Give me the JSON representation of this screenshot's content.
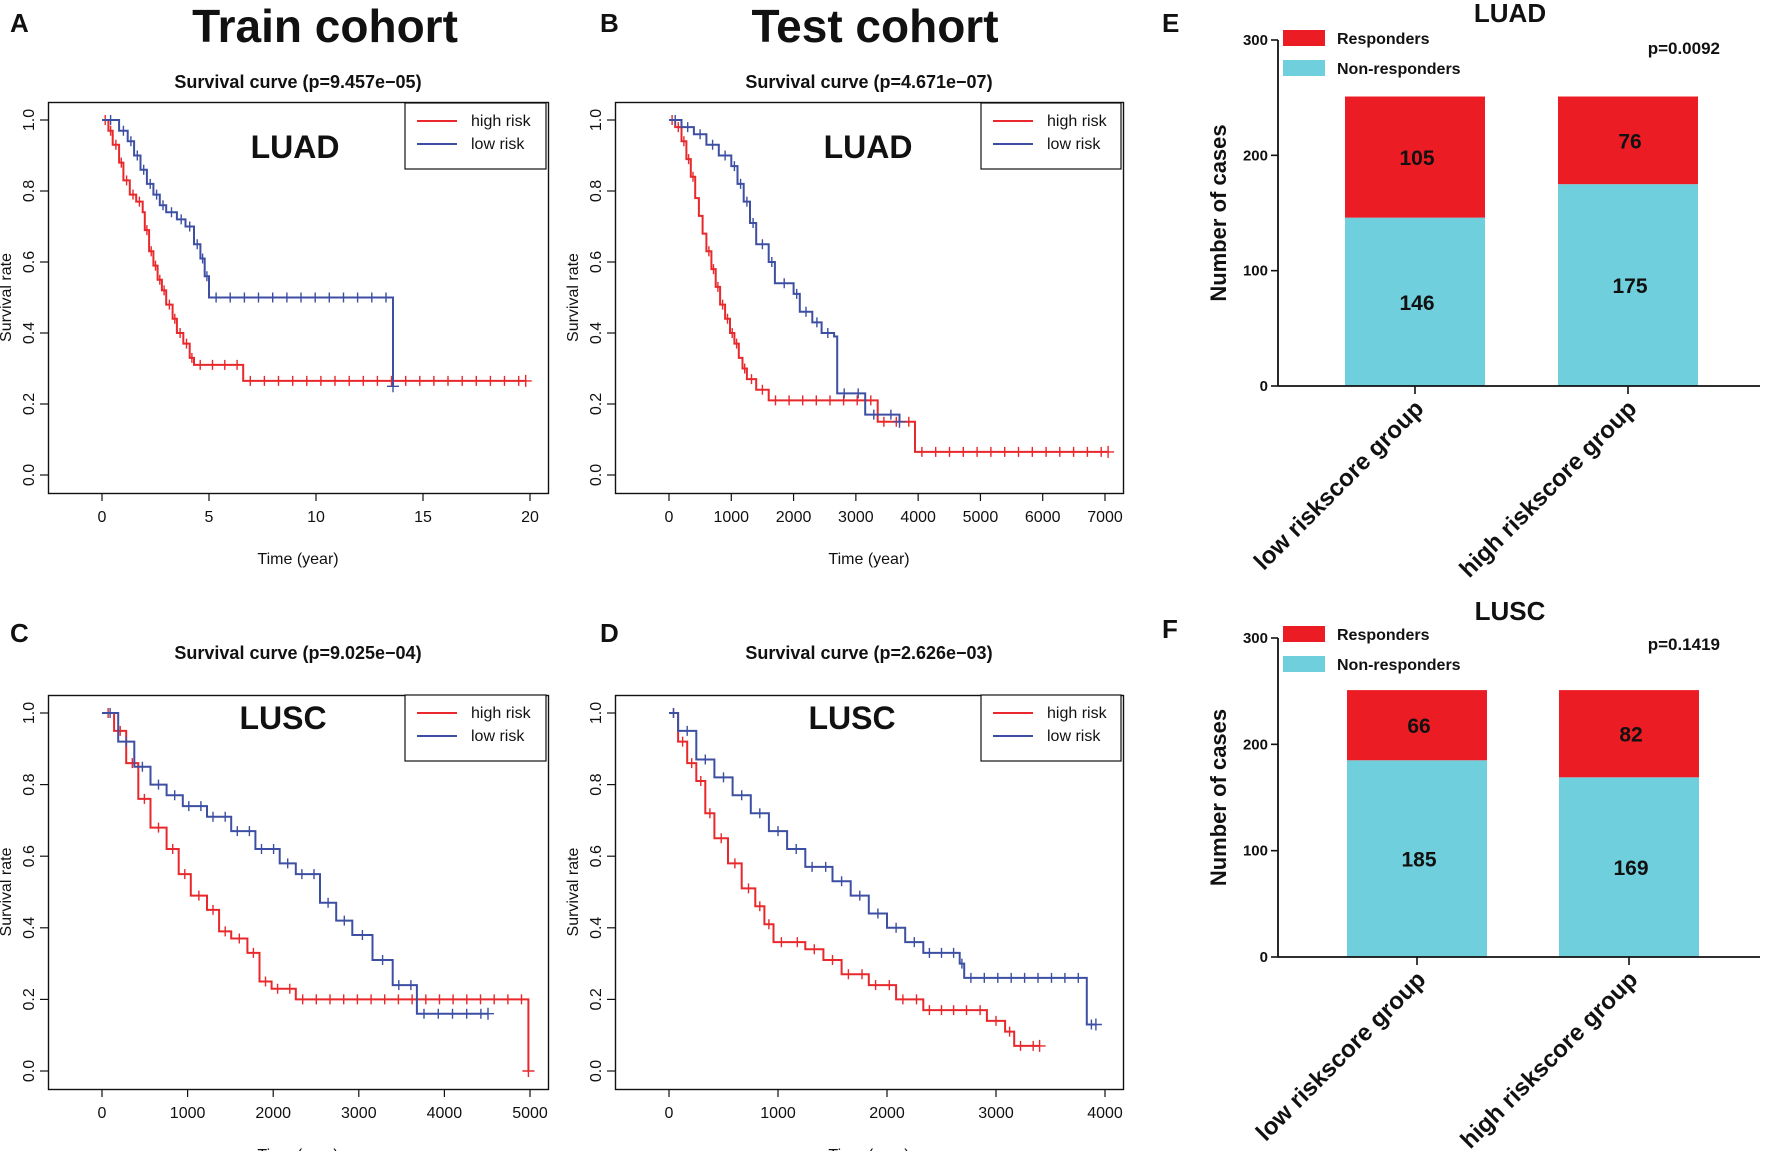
{
  "panel_labels": [
    "A",
    "B",
    "C",
    "D",
    "E",
    "F"
  ],
  "cohorts": {
    "train": "Train cohort",
    "test": "Test cohort"
  },
  "colors": {
    "high_risk": "#e8282b",
    "low_risk": "#3d4fa3",
    "responders": "#ec1c24",
    "non_responders": "#6fcfdc"
  },
  "chart_data": [
    {
      "id": "A",
      "type": "line",
      "title": "Survival curve (p=9.457e−05)",
      "label": "LUAD",
      "xlabel": "Time (year)",
      "ylabel": "Survival rate",
      "xlim": [
        0,
        20
      ],
      "ylim": [
        0,
        1
      ],
      "xticks": [
        "0",
        "5",
        "10",
        "15",
        "20"
      ],
      "yticks": [
        "0.0",
        "0.2",
        "0.4",
        "0.6",
        "0.8",
        "1.0"
      ],
      "legend": [
        "high risk",
        "low risk"
      ],
      "series": [
        {
          "name": "high risk",
          "points": [
            [
              0,
              1.0
            ],
            [
              0.3,
              0.97
            ],
            [
              0.5,
              0.93
            ],
            [
              0.8,
              0.88
            ],
            [
              1.0,
              0.83
            ],
            [
              1.3,
              0.79
            ],
            [
              1.6,
              0.77
            ],
            [
              1.9,
              0.74
            ],
            [
              2.0,
              0.69
            ],
            [
              2.2,
              0.63
            ],
            [
              2.4,
              0.59
            ],
            [
              2.6,
              0.55
            ],
            [
              2.8,
              0.52
            ],
            [
              3.0,
              0.48
            ],
            [
              3.3,
              0.44
            ],
            [
              3.5,
              0.4
            ],
            [
              3.8,
              0.37
            ],
            [
              4.1,
              0.33
            ],
            [
              4.3,
              0.31
            ],
            [
              6.6,
              0.265
            ],
            [
              19.8,
              0.265
            ]
          ]
        },
        {
          "name": "low risk",
          "points": [
            [
              0,
              1.0
            ],
            [
              0.8,
              0.97
            ],
            [
              1.2,
              0.94
            ],
            [
              1.5,
              0.9
            ],
            [
              1.8,
              0.86
            ],
            [
              2.1,
              0.82
            ],
            [
              2.4,
              0.79
            ],
            [
              2.7,
              0.76
            ],
            [
              3.0,
              0.74
            ],
            [
              3.5,
              0.72
            ],
            [
              3.9,
              0.7
            ],
            [
              4.3,
              0.65
            ],
            [
              4.6,
              0.61
            ],
            [
              4.8,
              0.56
            ],
            [
              5.0,
              0.5
            ],
            [
              13.6,
              0.5
            ],
            [
              13.6,
              0.25
            ]
          ]
        }
      ]
    },
    {
      "id": "B",
      "type": "line",
      "title": "Survival curve (p=4.671e−07)",
      "label": "LUAD",
      "xlabel": "Time (year)",
      "ylabel": "Survival rate",
      "xlim": [
        0,
        7000
      ],
      "ylim": [
        0,
        1
      ],
      "xticks": [
        "0",
        "1000",
        "2000",
        "3000",
        "4000",
        "5000",
        "6000",
        "7000"
      ],
      "yticks": [
        "0.0",
        "0.2",
        "0.4",
        "0.6",
        "0.8",
        "1.0"
      ],
      "legend": [
        "high risk",
        "low risk"
      ],
      "series": [
        {
          "name": "high risk",
          "points": [
            [
              0,
              1.0
            ],
            [
              100,
              0.98
            ],
            [
              200,
              0.94
            ],
            [
              280,
              0.89
            ],
            [
              350,
              0.84
            ],
            [
              420,
              0.78
            ],
            [
              480,
              0.73
            ],
            [
              540,
              0.68
            ],
            [
              600,
              0.63
            ],
            [
              680,
              0.58
            ],
            [
              750,
              0.53
            ],
            [
              820,
              0.48
            ],
            [
              900,
              0.44
            ],
            [
              980,
              0.4
            ],
            [
              1050,
              0.37
            ],
            [
              1120,
              0.33
            ],
            [
              1180,
              0.3
            ],
            [
              1250,
              0.27
            ],
            [
              1400,
              0.24
            ],
            [
              1600,
              0.21
            ],
            [
              3350,
              0.21
            ],
            [
              3350,
              0.15
            ],
            [
              3950,
              0.15
            ],
            [
              3950,
              0.065
            ],
            [
              7050,
              0.065
            ]
          ]
        },
        {
          "name": "low risk",
          "points": [
            [
              0,
              1.0
            ],
            [
              200,
              0.98
            ],
            [
              400,
              0.96
            ],
            [
              600,
              0.93
            ],
            [
              800,
              0.9
            ],
            [
              1000,
              0.87
            ],
            [
              1100,
              0.82
            ],
            [
              1200,
              0.77
            ],
            [
              1300,
              0.71
            ],
            [
              1400,
              0.65
            ],
            [
              1600,
              0.6
            ],
            [
              1700,
              0.54
            ],
            [
              2000,
              0.51
            ],
            [
              2100,
              0.46
            ],
            [
              2300,
              0.43
            ],
            [
              2450,
              0.4
            ],
            [
              2650,
              0.39
            ],
            [
              2700,
              0.23
            ],
            [
              3150,
              0.23
            ],
            [
              3150,
              0.17
            ],
            [
              3700,
              0.15
            ]
          ]
        }
      ]
    },
    {
      "id": "C",
      "type": "line",
      "title": "Survival curve (p=9.025e−04)",
      "label": "LUSC",
      "xlabel": "Time (year)",
      "ylabel": "Survival rate",
      "xlim": [
        0,
        5300
      ],
      "ylim": [
        0,
        1
      ],
      "xticks": [
        "0",
        "1000",
        "2000",
        "3000",
        "4000",
        "5000"
      ],
      "yticks": [
        "0.0",
        "0.2",
        "0.4",
        "0.6",
        "0.8",
        "1.0"
      ],
      "legend": [
        "high risk",
        "low risk"
      ],
      "series": [
        {
          "name": "high risk",
          "points": [
            [
              0,
              1.0
            ],
            [
              150,
              0.95
            ],
            [
              300,
              0.86
            ],
            [
              450,
              0.76
            ],
            [
              600,
              0.68
            ],
            [
              800,
              0.62
            ],
            [
              950,
              0.55
            ],
            [
              1100,
              0.49
            ],
            [
              1300,
              0.45
            ],
            [
              1450,
              0.39
            ],
            [
              1600,
              0.37
            ],
            [
              1800,
              0.33
            ],
            [
              1950,
              0.25
            ],
            [
              2100,
              0.23
            ],
            [
              2400,
              0.2
            ],
            [
              5280,
              0.2
            ],
            [
              5280,
              0.0
            ]
          ]
        },
        {
          "name": "low risk",
          "points": [
            [
              0,
              1.0
            ],
            [
              200,
              0.92
            ],
            [
              400,
              0.85
            ],
            [
              600,
              0.8
            ],
            [
              800,
              0.77
            ],
            [
              1000,
              0.74
            ],
            [
              1300,
              0.71
            ],
            [
              1600,
              0.67
            ],
            [
              1900,
              0.62
            ],
            [
              2200,
              0.58
            ],
            [
              2400,
              0.55
            ],
            [
              2700,
              0.47
            ],
            [
              2900,
              0.42
            ],
            [
              3100,
              0.38
            ],
            [
              3350,
              0.31
            ],
            [
              3600,
              0.24
            ],
            [
              3900,
              0.16
            ],
            [
              4780,
              0.16
            ]
          ]
        }
      ]
    },
    {
      "id": "D",
      "type": "line",
      "title": "Survival curve (p=2.626e−03)",
      "label": "LUSC",
      "xlabel": "Time (year)",
      "ylabel": "Survival rate",
      "xlim": [
        0,
        4800
      ],
      "ylim": [
        0,
        1
      ],
      "xticks": [
        "0",
        "1000",
        "2000",
        "3000",
        "4000"
      ],
      "yticks": [
        "0.0",
        "0.2",
        "0.4",
        "0.6",
        "0.8",
        "1.0"
      ],
      "legend": [
        "high risk",
        "low risk"
      ],
      "series": [
        {
          "name": "high risk",
          "points": [
            [
              0,
              1.0
            ],
            [
              100,
              0.92
            ],
            [
              200,
              0.86
            ],
            [
              300,
              0.81
            ],
            [
              400,
              0.72
            ],
            [
              500,
              0.65
            ],
            [
              650,
              0.58
            ],
            [
              800,
              0.51
            ],
            [
              950,
              0.46
            ],
            [
              1050,
              0.41
            ],
            [
              1150,
              0.36
            ],
            [
              1500,
              0.34
            ],
            [
              1700,
              0.31
            ],
            [
              1900,
              0.27
            ],
            [
              2200,
              0.24
            ],
            [
              2500,
              0.2
            ],
            [
              2800,
              0.17
            ],
            [
              3200,
              0.17
            ],
            [
              3500,
              0.14
            ],
            [
              3700,
              0.11
            ],
            [
              3800,
              0.07
            ],
            [
              4080,
              0.07
            ]
          ]
        },
        {
          "name": "low risk",
          "points": [
            [
              0,
              1.0
            ],
            [
              100,
              0.95
            ],
            [
              300,
              0.87
            ],
            [
              500,
              0.82
            ],
            [
              700,
              0.77
            ],
            [
              900,
              0.72
            ],
            [
              1100,
              0.67
            ],
            [
              1300,
              0.62
            ],
            [
              1500,
              0.57
            ],
            [
              1800,
              0.53
            ],
            [
              2000,
              0.49
            ],
            [
              2200,
              0.44
            ],
            [
              2400,
              0.4
            ],
            [
              2600,
              0.36
            ],
            [
              2800,
              0.33
            ],
            [
              3200,
              0.3
            ],
            [
              3250,
              0.26
            ],
            [
              4580,
              0.26
            ],
            [
              4600,
              0.13
            ],
            [
              4700,
              0.13
            ]
          ]
        }
      ]
    },
    {
      "id": "E",
      "type": "bar",
      "stacked": true,
      "title": "LUAD",
      "p_value": "p=0.0092",
      "ylabel": "Number of cases",
      "ylim": [
        0,
        300
      ],
      "yticks": [
        "0",
        "100",
        "200",
        "300"
      ],
      "categories": [
        "low riskscore group",
        "high riskscore group"
      ],
      "series": [
        {
          "name": "Non-responders",
          "values": [
            146,
            175
          ]
        },
        {
          "name": "Responders",
          "values": [
            105,
            76
          ]
        }
      ]
    },
    {
      "id": "F",
      "type": "bar",
      "stacked": true,
      "title": "LUSC",
      "p_value": "p=0.1419",
      "ylabel": "Number of cases",
      "ylim": [
        0,
        300
      ],
      "yticks": [
        "0",
        "100",
        "200",
        "300"
      ],
      "categories": [
        "low riskscore group",
        "high riskscore group"
      ],
      "series": [
        {
          "name": "Non-responders",
          "values": [
            185,
            169
          ]
        },
        {
          "name": "Responders",
          "values": [
            66,
            82
          ]
        }
      ]
    }
  ]
}
